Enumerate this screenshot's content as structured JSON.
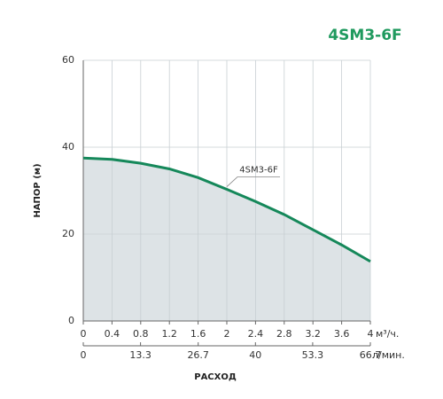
{
  "chart_data": {
    "type": "area-line",
    "title": "4SM3-6F",
    "y_label": "НАПОР (м)",
    "x_label": "РАСХОД",
    "x_unit": "м³/ч.",
    "x2_unit": "л/мин.",
    "x": [
      0,
      0.4,
      0.8,
      1.2,
      1.6,
      2,
      2.4,
      2.8,
      3.2,
      3.6,
      4
    ],
    "series": [
      {
        "name": "4SM3-6F",
        "color": "#15885a",
        "fill": "#dde3e6",
        "values": [
          37.5,
          37.2,
          36.3,
          35,
          33,
          30.3,
          27.5,
          24.5,
          21,
          17.5,
          13.7
        ]
      }
    ],
    "xlim": [
      0,
      4
    ],
    "xticks": [
      0,
      0.4,
      0.8,
      1.2,
      1.6,
      2,
      2.4,
      2.8,
      3.2,
      3.6,
      4
    ],
    "x2lim": [
      0,
      66.7
    ],
    "x2ticks": [
      0,
      13.3,
      26.7,
      40,
      53.3,
      66.7
    ],
    "ylim": [
      0,
      60
    ],
    "yticks": [
      0,
      20,
      40,
      60
    ],
    "grid": true
  }
}
